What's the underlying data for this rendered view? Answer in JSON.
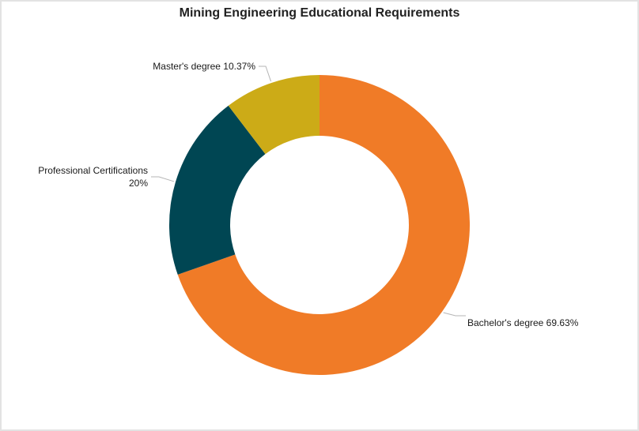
{
  "chart_data": {
    "type": "pie",
    "title": "Mining Engineering Educational Requirements",
    "donut": true,
    "slices": [
      {
        "label": "Bachelor's degree",
        "value": 69.63,
        "value_text": "69.63%",
        "color": "#f07b27"
      },
      {
        "label": "Professional Certifications",
        "value": 20,
        "value_text": "20%",
        "color": "#004653"
      },
      {
        "label": "Master's degree",
        "value": 10.37,
        "value_text": "10.37%",
        "color": "#ccab17"
      }
    ]
  }
}
